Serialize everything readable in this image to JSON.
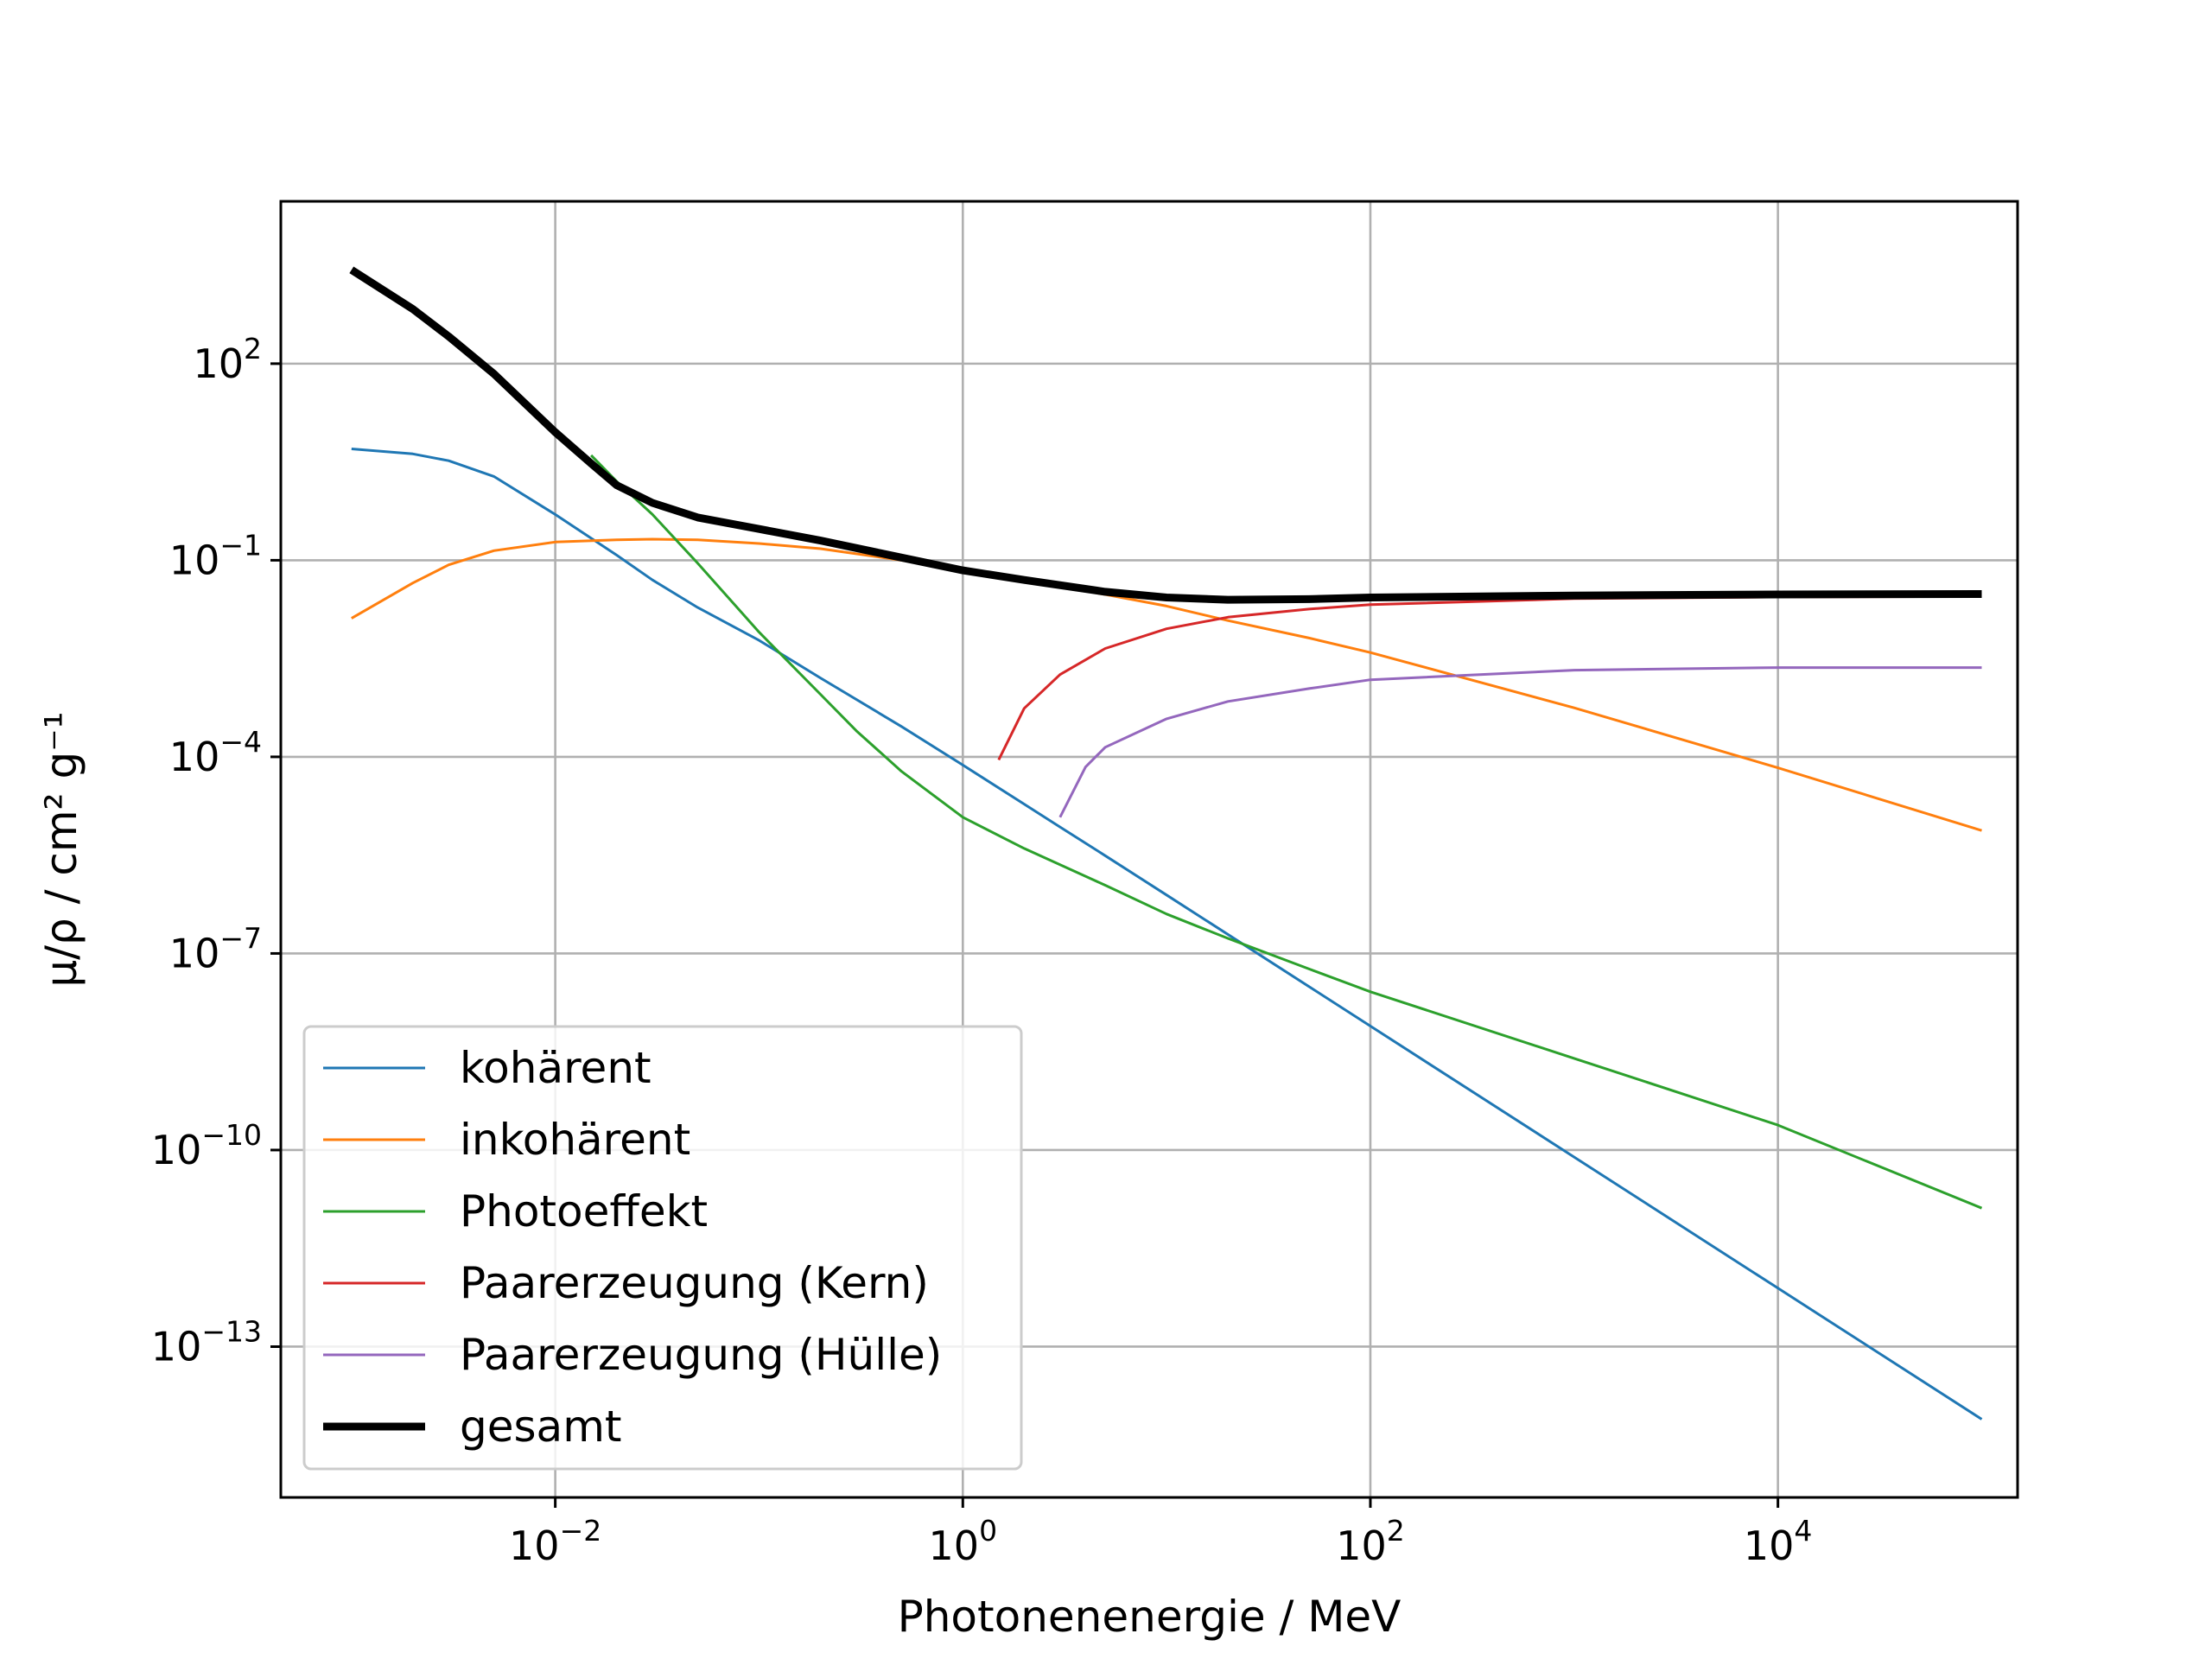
{
  "chart_data": {
    "type": "line",
    "xlabel": "Photonenenergie / MeV",
    "ylabel": "μ/ρ / cm² g⁻¹",
    "xscale": "log",
    "yscale": "log",
    "xlim": [
      0.00045,
      150000
    ],
    "ylim": [
      5e-16,
      30000.0
    ],
    "grid": true,
    "legend_position": "lower-left",
    "x_ticks": [
      {
        "value": 0.01,
        "label": "10",
        "exp": "−2"
      },
      {
        "value": 1,
        "label": "10",
        "exp": "0"
      },
      {
        "value": 100,
        "label": "10",
        "exp": "2"
      },
      {
        "value": 10000,
        "label": "10",
        "exp": "4"
      }
    ],
    "y_ticks": [
      {
        "value": 100,
        "label": "10",
        "exp": "2"
      },
      {
        "value": 0.1,
        "label": "10",
        "exp": "−1"
      },
      {
        "value": 0.0001,
        "label": "10",
        "exp": "−4"
      },
      {
        "value": 1e-07,
        "label": "10",
        "exp": "−7"
      },
      {
        "value": 1e-10,
        "label": "10",
        "exp": "−10"
      },
      {
        "value": 1e-13,
        "label": "10",
        "exp": "−13"
      }
    ],
    "series": [
      {
        "name": "kohärent",
        "color": "#1f77b4",
        "width": 3,
        "points": [
          [
            0.001,
            5.0
          ],
          [
            0.002,
            4.2
          ],
          [
            0.003,
            3.3
          ],
          [
            0.005,
            1.9
          ],
          [
            0.01,
            0.5
          ],
          [
            0.02,
            0.12
          ],
          [
            0.03,
            0.05
          ],
          [
            0.05,
            0.019
          ],
          [
            0.1,
            0.006
          ],
          [
            0.2,
            0.0016
          ],
          [
            0.5,
            0.00029
          ],
          [
            1,
            7.5e-05
          ],
          [
            2,
            1.9e-05
          ],
          [
            3,
            8.5e-06
          ],
          [
            5,
            3.1e-06
          ],
          [
            10,
            7.8e-07
          ],
          [
            100,
            7.8e-09
          ],
          [
            1000,
            7.8e-11
          ],
          [
            10000,
            7.8e-13
          ],
          [
            100000,
            7.8e-15
          ]
        ]
      },
      {
        "name": "inkohärent",
        "color": "#ff7f0e",
        "width": 3,
        "points": [
          [
            0.001,
            0.013
          ],
          [
            0.002,
            0.045
          ],
          [
            0.003,
            0.085
          ],
          [
            0.005,
            0.14
          ],
          [
            0.01,
            0.19
          ],
          [
            0.02,
            0.205
          ],
          [
            0.03,
            0.21
          ],
          [
            0.05,
            0.205
          ],
          [
            0.1,
            0.18
          ],
          [
            0.2,
            0.15
          ],
          [
            0.5,
            0.1
          ],
          [
            1,
            0.07
          ],
          [
            2,
            0.049
          ],
          [
            5,
            0.03
          ],
          [
            10,
            0.02
          ],
          [
            20,
            0.012
          ],
          [
            50,
            0.0065
          ],
          [
            100,
            0.0039
          ],
          [
            1000,
            0.00056
          ],
          [
            10000,
            6.8e-05
          ],
          [
            100000,
            7.5e-06
          ]
        ]
      },
      {
        "name": "Photoeffekt",
        "color": "#2ca02c",
        "width": 3,
        "points": [
          [
            0.015,
            4.0
          ],
          [
            0.02,
            1.6
          ],
          [
            0.03,
            0.5
          ],
          [
            0.05,
            0.09
          ],
          [
            0.1,
            0.008
          ],
          [
            0.2,
            0.0009
          ],
          [
            0.3,
            0.00025
          ],
          [
            0.5,
            6e-05
          ],
          [
            1,
            1.2e-05
          ],
          [
            2,
            4e-06
          ],
          [
            5,
            1.1e-06
          ],
          [
            10,
            4e-07
          ],
          [
            20,
            1.7e-07
          ],
          [
            50,
            5.8e-08
          ],
          [
            100,
            2.6e-08
          ],
          [
            1000,
            2.5e-09
          ],
          [
            10000,
            2.4e-10
          ],
          [
            100000,
            1.3e-11
          ]
        ]
      },
      {
        "name": "Paarerzeugung (Kern)",
        "color": "#d62728",
        "width": 3,
        "points": [
          [
            1.5,
            9e-05
          ],
          [
            2,
            0.00055
          ],
          [
            3,
            0.0018
          ],
          [
            5,
            0.0045
          ],
          [
            10,
            0.009
          ],
          [
            20,
            0.0135
          ],
          [
            50,
            0.018
          ],
          [
            100,
            0.021
          ],
          [
            1000,
            0.026
          ],
          [
            10000,
            0.0275
          ],
          [
            100000,
            0.028
          ]
        ]
      },
      {
        "name": "Paarerzeugung (Hülle)",
        "color": "#9467bd",
        "width": 3,
        "points": [
          [
            3,
            1.2e-05
          ],
          [
            4,
            7e-05
          ],
          [
            5,
            0.00014
          ],
          [
            10,
            0.00038
          ],
          [
            20,
            0.0007
          ],
          [
            50,
            0.0011
          ],
          [
            100,
            0.0015
          ],
          [
            1000,
            0.0021
          ],
          [
            10000,
            0.0023
          ],
          [
            100000,
            0.0023
          ]
        ]
      },
      {
        "name": "gesamt",
        "color": "#000000",
        "width": 9,
        "points": [
          [
            0.001,
            2700
          ],
          [
            0.002,
            680
          ],
          [
            0.003,
            260
          ],
          [
            0.005,
            70
          ],
          [
            0.01,
            9
          ],
          [
            0.015,
            3
          ],
          [
            0.02,
            1.4
          ],
          [
            0.03,
            0.75
          ],
          [
            0.05,
            0.45
          ],
          [
            0.1,
            0.3
          ],
          [
            0.2,
            0.2
          ],
          [
            0.5,
            0.11
          ],
          [
            1,
            0.07
          ],
          [
            2,
            0.05
          ],
          [
            5,
            0.033
          ],
          [
            10,
            0.027
          ],
          [
            20,
            0.025
          ],
          [
            50,
            0.0255
          ],
          [
            100,
            0.027
          ],
          [
            1000,
            0.029
          ],
          [
            10000,
            0.03
          ],
          [
            100000,
            0.0305
          ]
        ]
      }
    ]
  }
}
